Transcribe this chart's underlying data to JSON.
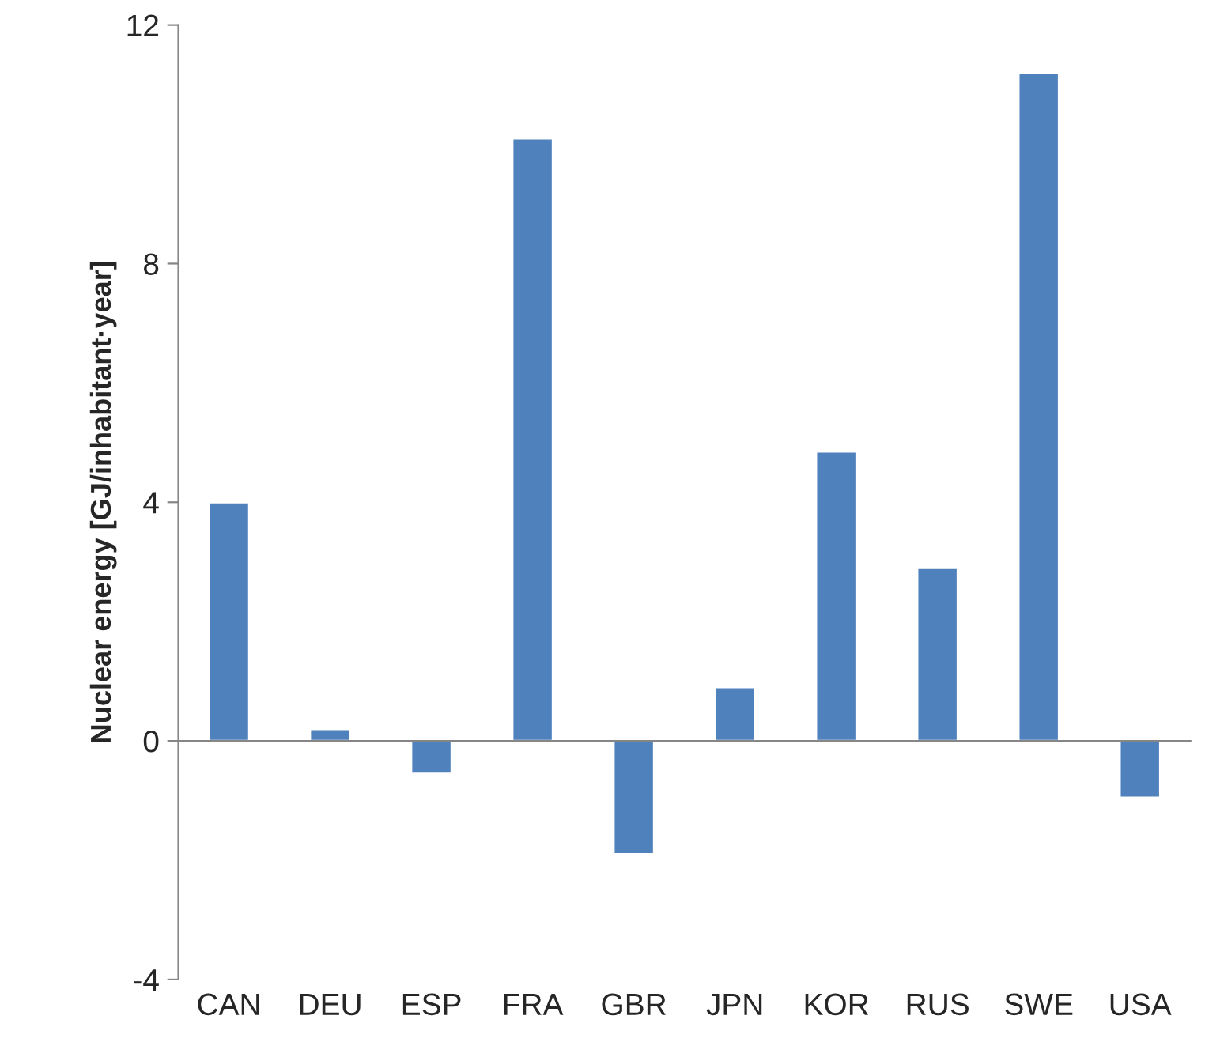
{
  "chart_data": {
    "type": "bar",
    "ylabel": "Nuclear energy [GJ/inhabitant·year]",
    "categories": [
      "CAN",
      "DEU",
      "ESP",
      "FRA",
      "GBR",
      "JPN",
      "KOR",
      "RUS",
      "SWE",
      "USA"
    ],
    "series": [
      {
        "color": "#4f81bd",
        "values": [
          4.0,
          0.2,
          -0.55,
          10.1,
          -1.9,
          0.9,
          4.85,
          2.9,
          11.2,
          -0.95
        ]
      }
    ],
    "ylim": [
      -4,
      12
    ],
    "yticks": [
      -4,
      0,
      4,
      8,
      12
    ],
    "legend": false
  }
}
